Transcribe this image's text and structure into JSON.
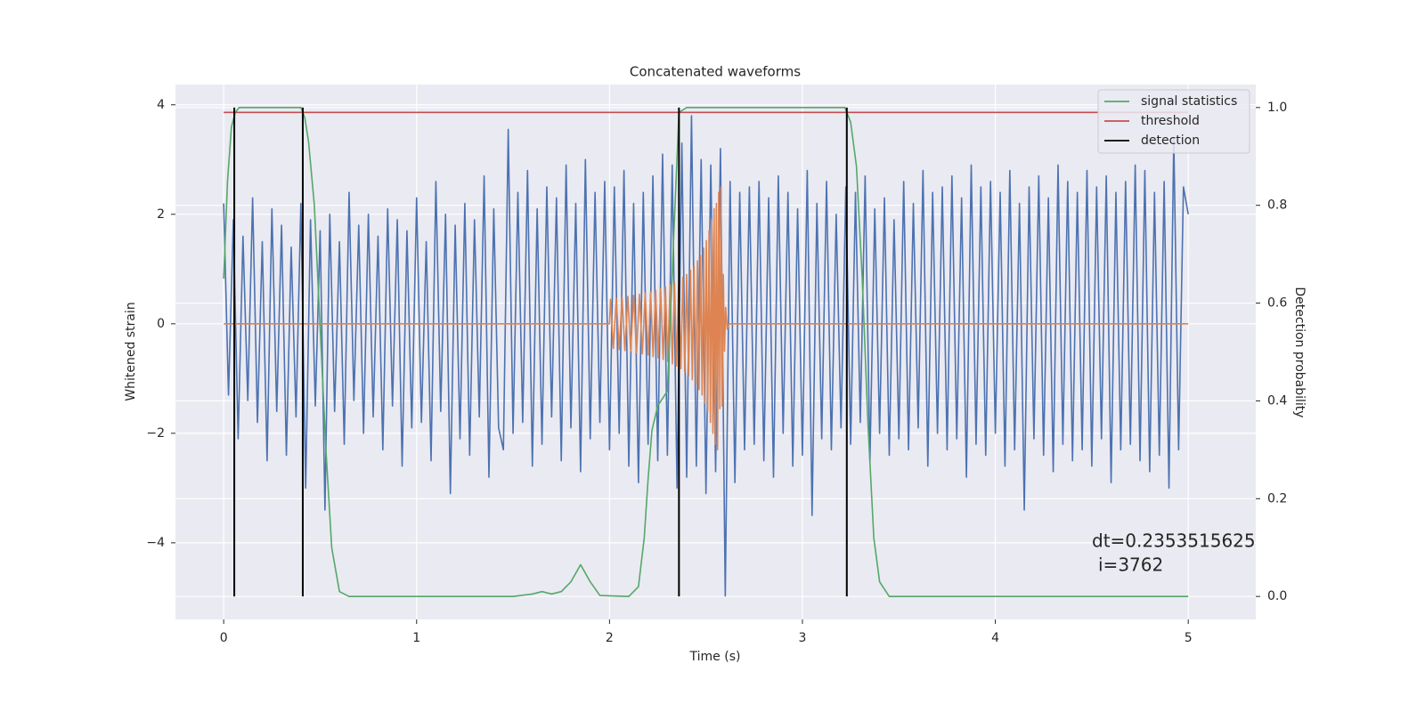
{
  "chart_data": {
    "type": "line",
    "title": "Concatenated waveforms",
    "xlabel": "Time (s)",
    "ylabel": "Whitened strain",
    "y2label": "Detection probability",
    "xlim": [
      -0.25,
      5.35
    ],
    "ylim": [
      -5.4,
      4.37
    ],
    "y2lim": [
      -0.047,
      1.047
    ],
    "xticks": [
      0,
      1,
      2,
      3,
      4,
      5
    ],
    "yticks": [
      {
        "value": -4,
        "label": "−4"
      },
      {
        "value": -2,
        "label": "−2"
      },
      0,
      2,
      4
    ],
    "y2ticks": [
      {
        "value": 0,
        "label": "0.0"
      },
      0.2,
      0.4,
      0.6,
      0.8,
      {
        "value": 1,
        "label": "1.0"
      }
    ],
    "grid": true,
    "legend": "upper right",
    "annotations": [
      "dt=0.2353515625",
      "i=3762"
    ],
    "series": [
      {
        "color": "#4c72b0",
        "x": [
          0,
          0.025,
          0.05,
          0.075,
          0.1,
          0.125,
          0.15,
          0.175,
          0.2,
          0.225,
          0.25,
          0.275,
          0.3,
          0.325,
          0.35,
          0.375,
          0.4,
          0.425,
          0.45,
          0.475,
          0.5,
          0.525,
          0.55,
          0.575,
          0.6,
          0.625,
          0.65,
          0.675,
          0.7,
          0.725,
          0.75,
          0.775,
          0.8,
          0.825,
          0.85,
          0.875,
          0.9,
          0.925,
          0.95,
          0.975,
          1,
          1.025,
          1.05,
          1.075,
          1.1,
          1.125,
          1.15,
          1.175,
          1.2,
          1.225,
          1.25,
          1.275,
          1.3,
          1.325,
          1.35,
          1.375,
          1.4,
          1.425,
          1.45,
          1.475,
          1.5,
          1.525,
          1.55,
          1.575,
          1.6,
          1.625,
          1.65,
          1.675,
          1.7,
          1.725,
          1.75,
          1.775,
          1.8,
          1.825,
          1.85,
          1.875,
          1.9,
          1.925,
          1.95,
          1.975,
          2,
          2.025,
          2.05,
          2.075,
          2.1,
          2.125,
          2.15,
          2.175,
          2.2,
          2.225,
          2.25,
          2.275,
          2.3,
          2.325,
          2.35,
          2.375,
          2.4,
          2.425,
          2.45,
          2.475,
          2.5,
          2.525,
          2.55,
          2.575,
          2.6,
          2.625,
          2.65,
          2.675,
          2.7,
          2.725,
          2.75,
          2.775,
          2.8,
          2.825,
          2.85,
          2.875,
          2.9,
          2.925,
          2.95,
          2.975,
          3,
          3.025,
          3.05,
          3.075,
          3.1,
          3.125,
          3.15,
          3.175,
          3.2,
          3.225,
          3.25,
          3.275,
          3.3,
          3.325,
          3.35,
          3.375,
          3.4,
          3.425,
          3.45,
          3.475,
          3.5,
          3.525,
          3.55,
          3.575,
          3.6,
          3.625,
          3.65,
          3.675,
          3.7,
          3.725,
          3.75,
          3.775,
          3.8,
          3.825,
          3.85,
          3.875,
          3.9,
          3.925,
          3.95,
          3.975,
          4,
          4.025,
          4.05,
          4.075,
          4.1,
          4.125,
          4.15,
          4.175,
          4.2,
          4.225,
          4.25,
          4.275,
          4.3,
          4.325,
          4.35,
          4.375,
          4.4,
          4.425,
          4.45,
          4.475,
          4.5,
          4.525,
          4.55,
          4.575,
          4.6,
          4.625,
          4.65,
          4.675,
          4.7,
          4.725,
          4.75,
          4.775,
          4.8,
          4.825,
          4.85,
          4.875,
          4.9,
          4.925,
          4.95,
          4.975,
          5
        ],
        "values": [
          2.2,
          -1.3,
          1.9,
          -2.1,
          1.6,
          -1.4,
          2.3,
          -1.8,
          1.5,
          -2.5,
          2.1,
          -1.6,
          1.8,
          -2.4,
          1.4,
          -1.7,
          2.2,
          -3.0,
          1.9,
          -1.5,
          1.7,
          -3.4,
          2.0,
          -1.6,
          1.5,
          -2.2,
          2.4,
          -1.4,
          1.8,
          -2.0,
          2.0,
          -1.7,
          1.6,
          -2.3,
          2.1,
          -1.5,
          1.9,
          -2.6,
          1.7,
          -1.9,
          2.3,
          -1.8,
          1.5,
          -2.5,
          2.6,
          -1.6,
          2.0,
          -3.1,
          1.8,
          -2.1,
          2.2,
          -2.4,
          1.9,
          -1.7,
          2.7,
          -2.8,
          2.1,
          -1.9,
          -2.3,
          3.55,
          -2.0,
          2.4,
          -1.8,
          2.8,
          -2.6,
          2.1,
          -2.2,
          2.5,
          -1.7,
          2.3,
          -2.5,
          2.9,
          -1.9,
          2.2,
          -2.7,
          3.0,
          -2.1,
          2.4,
          -1.8,
          2.6,
          -2.3,
          2.5,
          -2.0,
          2.8,
          -2.6,
          2.2,
          -2.9,
          2.4,
          -2.2,
          2.7,
          -2.5,
          3.1,
          -2.4,
          2.9,
          -3.0,
          3.3,
          -2.8,
          3.8,
          -2.6,
          3.0,
          -3.1,
          2.9,
          -2.7,
          3.2,
          -4.97,
          2.6,
          -2.9,
          2.4,
          -2.3,
          2.5,
          -2.2,
          2.6,
          -2.5,
          2.3,
          -2.8,
          2.7,
          -2.0,
          2.4,
          -2.6,
          2.1,
          -2.4,
          2.8,
          -3.5,
          2.2,
          -2.1,
          2.6,
          -2.3,
          2.0,
          -1.9,
          2.5,
          -2.2,
          2.4,
          -1.8,
          2.7,
          -2.5,
          2.1,
          -2.0,
          2.3,
          -2.4,
          1.9,
          -2.1,
          2.6,
          -2.3,
          2.2,
          -1.9,
          2.8,
          -2.6,
          2.4,
          -2.0,
          2.5,
          -2.3,
          2.7,
          -2.1,
          2.3,
          -2.8,
          2.9,
          -2.2,
          2.5,
          -2.4,
          2.6,
          -2.0,
          2.4,
          -2.6,
          2.8,
          -2.3,
          2.2,
          -3.4,
          2.5,
          -2.1,
          2.7,
          -2.4,
          2.3,
          -2.7,
          2.9,
          -2.2,
          2.6,
          -2.5,
          2.4,
          -2.3,
          2.8,
          -2.6,
          2.5,
          -2.1,
          2.7,
          -2.9,
          2.4,
          -2.3,
          2.6,
          -2.2,
          2.9,
          -2.5,
          2.8,
          -2.7,
          2.4,
          -2.4,
          2.6,
          -3.0,
          3.4,
          -2.3,
          2.5,
          2.0
        ]
      },
      {
        "color": "#dd8452",
        "x": [
          0,
          2.0,
          2.005,
          2.02,
          2.035,
          2.05,
          2.065,
          2.08,
          2.095,
          2.11,
          2.125,
          2.14,
          2.155,
          2.17,
          2.185,
          2.2,
          2.213,
          2.226,
          2.239,
          2.252,
          2.265,
          2.278,
          2.29,
          2.302,
          2.314,
          2.326,
          2.337,
          2.348,
          2.359,
          2.37,
          2.38,
          2.39,
          2.4,
          2.41,
          2.42,
          2.429,
          2.438,
          2.447,
          2.456,
          2.464,
          2.472,
          2.48,
          2.488,
          2.495,
          2.502,
          2.509,
          2.516,
          2.523,
          2.53,
          2.536,
          2.542,
          2.548,
          2.554,
          2.56,
          2.566,
          2.572,
          2.578,
          2.584,
          2.59,
          2.596,
          2.602,
          2.61,
          2.62,
          5
        ],
        "values": [
          0,
          0,
          0.45,
          -0.45,
          0.46,
          -0.47,
          0.48,
          -0.49,
          0.5,
          -0.5,
          0.52,
          -0.53,
          0.54,
          -0.55,
          0.56,
          -0.57,
          0.58,
          -0.6,
          0.61,
          -0.62,
          0.64,
          -0.65,
          0.67,
          -0.69,
          0.71,
          -0.73,
          0.75,
          -0.77,
          0.8,
          -0.82,
          0.85,
          -0.88,
          0.9,
          -0.94,
          0.98,
          -1.02,
          1.06,
          -1.1,
          1.15,
          -1.2,
          1.25,
          -1.3,
          1.38,
          -1.45,
          1.52,
          -1.6,
          1.7,
          -1.8,
          1.9,
          -2.0,
          2.1,
          -2.2,
          2.2,
          -2.3,
          2.4,
          -1.55,
          2.5,
          -1.5,
          0.9,
          -0.5,
          0.3,
          -0.1,
          0,
          0
        ]
      },
      {
        "name": "signal statistics",
        "color": "#55a868",
        "axis": "y2",
        "x": [
          0,
          0.02,
          0.04,
          0.06,
          0.08,
          0.1,
          0.4,
          0.42,
          0.44,
          0.47,
          0.5,
          0.53,
          0.56,
          0.6,
          0.65,
          1.5,
          1.6,
          1.65,
          1.7,
          1.75,
          1.8,
          1.85,
          1.9,
          1.95,
          2.1,
          2.15,
          2.18,
          2.2,
          2.22,
          2.25,
          2.3,
          2.33,
          2.36,
          2.4,
          3.22,
          3.25,
          3.28,
          3.31,
          3.34,
          3.37,
          3.4,
          3.45,
          5
        ],
        "values": [
          0.65,
          0.85,
          0.96,
          0.99,
          1.0,
          1.0,
          1.0,
          0.98,
          0.93,
          0.8,
          0.55,
          0.3,
          0.1,
          0.01,
          0,
          0,
          0.005,
          0.01,
          0.005,
          0.01,
          0.03,
          0.065,
          0.03,
          0.002,
          0,
          0.02,
          0.12,
          0.24,
          0.34,
          0.39,
          0.42,
          0.71,
          0.99,
          1.0,
          1.0,
          0.97,
          0.88,
          0.65,
          0.35,
          0.12,
          0.03,
          0,
          0
        ]
      },
      {
        "name": "threshold",
        "color": "#c44e52",
        "axis": "y2",
        "x": [
          0,
          5
        ],
        "values": [
          0.99,
          0.99
        ]
      },
      {
        "name": "detection",
        "color": "#000000",
        "axis": "y2",
        "style": "vlines",
        "x": [
          0.055,
          0.41,
          2.36,
          3.23
        ],
        "ymin": 0,
        "ymax": 1
      }
    ]
  }
}
